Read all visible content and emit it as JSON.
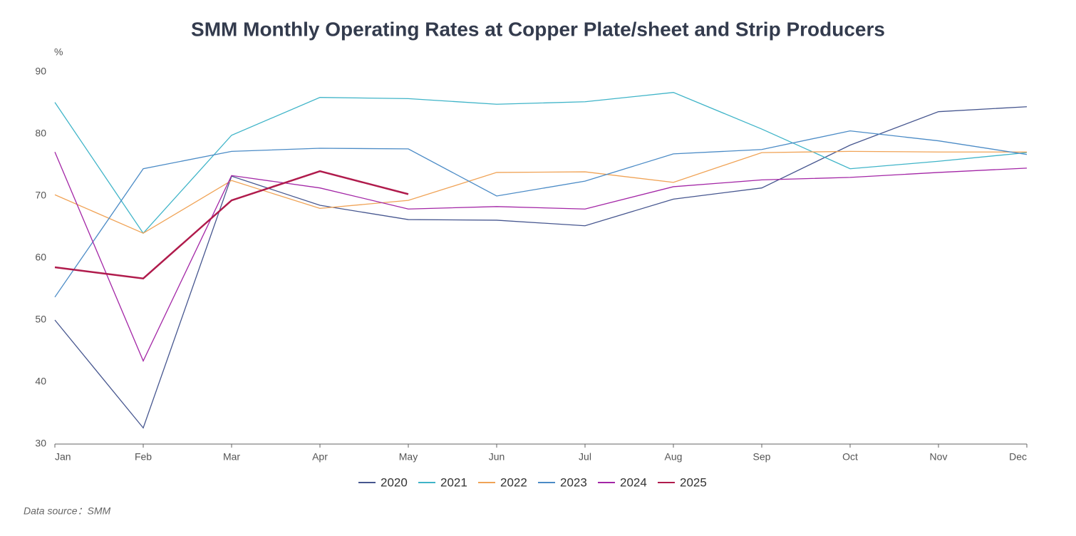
{
  "chart_data": {
    "type": "line",
    "title": "SMM Monthly Operating Rates at Copper Plate/sheet and Strip Producers",
    "y_label": "%",
    "source": "Data source：SMM",
    "categories": [
      "Jan",
      "Feb",
      "Mar",
      "Apr",
      "May",
      "Jun",
      "Jul",
      "Aug",
      "Sep",
      "Oct",
      "Nov",
      "Dec"
    ],
    "series": [
      {
        "name": "2020",
        "color": "#46568f",
        "values": [
          50,
          32.6,
          73.2,
          68.5,
          66.2,
          66.1,
          65.2,
          69.5,
          71.3,
          78.2,
          83.6,
          84.4
        ]
      },
      {
        "name": "2021",
        "color": "#3fb4c8",
        "values": [
          85.1,
          64.0,
          79.8,
          85.9,
          85.7,
          84.8,
          85.2,
          86.7,
          80.8,
          74.4,
          75.6,
          77.0
        ]
      },
      {
        "name": "2022",
        "color": "#f0a356",
        "values": [
          70.2,
          64.0,
          72.5,
          68.0,
          69.3,
          73.8,
          73.9,
          72.2,
          77.0,
          77.2,
          77.1,
          77.1
        ]
      },
      {
        "name": "2023",
        "color": "#4b8bc6",
        "values": [
          53.7,
          74.4,
          77.2,
          77.7,
          77.6,
          70.0,
          72.4,
          76.8,
          77.5,
          80.5,
          78.9,
          76.7
        ]
      },
      {
        "name": "2024",
        "color": "#a326a6",
        "values": [
          77.1,
          43.4,
          73.3,
          71.3,
          67.9,
          68.3,
          67.9,
          71.5,
          72.6,
          73.0,
          73.8,
          74.5
        ]
      },
      {
        "name": "2025",
        "color": "#b01b4c",
        "width": 2.5,
        "values": [
          58.5,
          56.7,
          69.3,
          74.0,
          70.3,
          null,
          null,
          null,
          null,
          null,
          null,
          null
        ]
      }
    ],
    "ylim": [
      30,
      90
    ],
    "yticks": [
      30,
      40,
      50,
      60,
      70,
      80,
      90
    ],
    "legend": "bottom"
  }
}
